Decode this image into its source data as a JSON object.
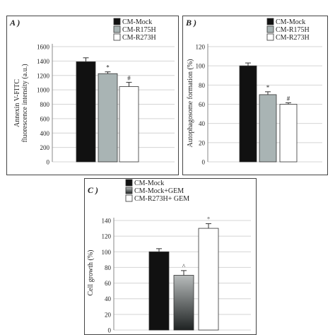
{
  "chart_data": [
    {
      "type": "bar",
      "panel_label": "A )",
      "ylabel": "Annexin V-FITC\nfluorescence intensity (a.u.)",
      "ylim": [
        0,
        1600
      ],
      "yticks": [
        "0",
        "200",
        "400",
        "600",
        "800",
        "1000",
        "1200",
        "1400",
        "1600"
      ],
      "legend": {
        "placement": "top-right"
      },
      "grid": true,
      "categories": [
        "CM-Mock",
        "CM-R175H",
        "CM-R273H"
      ],
      "values": [
        1390,
        1225,
        1045
      ],
      "errors": [
        55,
        25,
        60
      ],
      "annotations": [
        "",
        "*",
        "#"
      ],
      "colors": [
        "#111111",
        "#a9b4b4",
        "#ffffff"
      ]
    },
    {
      "type": "bar",
      "panel_label": "B )",
      "ylabel": "Autophagosome formation (%)",
      "ylim": [
        0,
        120
      ],
      "yticks": [
        "0",
        "20",
        "40",
        "60",
        "80",
        "100",
        "120"
      ],
      "legend": {
        "placement": "top-right"
      },
      "grid": true,
      "categories": [
        "CM-Mock",
        "CM-R175H",
        "CM-R273H"
      ],
      "values": [
        100,
        70,
        60
      ],
      "errors": [
        3,
        3,
        1.5
      ],
      "annotations": [
        "",
        "*",
        "#"
      ],
      "colors": [
        "#111111",
        "#a9b4b4",
        "#ffffff"
      ]
    },
    {
      "type": "bar",
      "panel_label": "C )",
      "ylabel": "Cell growth (%)",
      "ylim": [
        0,
        140
      ],
      "yticks": [
        "0",
        "20",
        "40",
        "60",
        "80",
        "100",
        "120",
        "140"
      ],
      "legend": {
        "placement": "top-left"
      },
      "grid": true,
      "categories": [
        "CM-Mock",
        "CM-Mock+GEM",
        "CM-R273H+ GEM"
      ],
      "values": [
        100,
        70,
        130
      ],
      "errors": [
        4,
        6,
        6
      ],
      "annotations": [
        "",
        "^",
        "°"
      ],
      "colors": [
        "#111111",
        "gradient",
        "#ffffff"
      ]
    }
  ]
}
